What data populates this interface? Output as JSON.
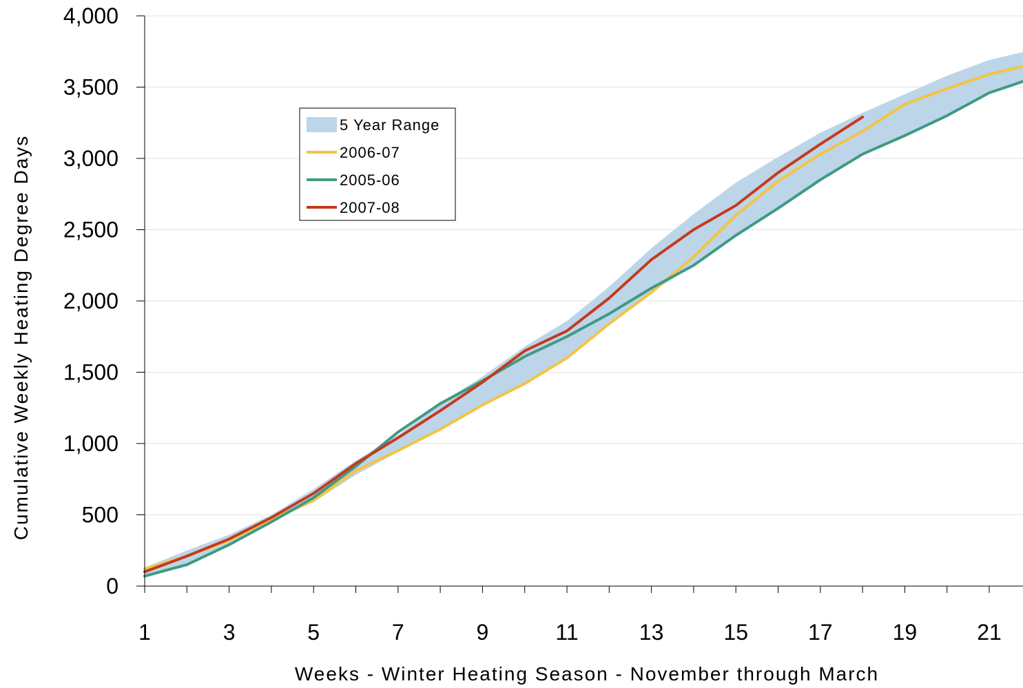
{
  "chart_data": {
    "type": "line",
    "xlabel": "Weeks - Winter Heating Season - November through March",
    "ylabel": "Cumulative Weekly Heating Degree Days",
    "xlim": [
      1,
      22
    ],
    "ylim": [
      0,
      4000
    ],
    "x_ticks": [
      1,
      3,
      5,
      7,
      9,
      11,
      13,
      15,
      17,
      19,
      21
    ],
    "y_ticks": [
      0,
      500,
      1000,
      1500,
      2000,
      2500,
      3000,
      3500,
      4000
    ],
    "y_tick_labels": [
      "0",
      "500",
      "1,000",
      "1,500",
      "2,000",
      "2,500",
      "3,000",
      "3,500",
      "4,000"
    ],
    "grid": "horizontal",
    "legend_position": "upper-left",
    "range_band": {
      "name": "5 Year Range",
      "color": "#bcd5e9",
      "x": [
        1,
        2,
        3,
        4,
        5,
        6,
        7,
        8,
        9,
        10,
        11,
        12,
        13,
        14,
        15,
        16,
        17,
        18,
        19,
        20,
        21,
        22
      ],
      "upper": [
        130,
        250,
        360,
        500,
        680,
        880,
        1060,
        1280,
        1470,
        1680,
        1860,
        2100,
        2370,
        2610,
        2830,
        3010,
        3180,
        3320,
        3450,
        3580,
        3690,
        3760
      ],
      "lower": [
        70,
        150,
        290,
        450,
        590,
        780,
        940,
        1100,
        1270,
        1420,
        1600,
        1840,
        2060,
        2250,
        2460,
        2650,
        2840,
        3020,
        3160,
        3300,
        3460,
        3560
      ]
    },
    "series": [
      {
        "name": "2006-07",
        "color": "#f5c344",
        "x": [
          1,
          2,
          3,
          4,
          5,
          6,
          7,
          8,
          9,
          10,
          11,
          12,
          13,
          14,
          15,
          16,
          17,
          18,
          19,
          20,
          21,
          22
        ],
        "values": [
          120,
          210,
          320,
          470,
          600,
          810,
          950,
          1100,
          1270,
          1420,
          1600,
          1840,
          2060,
          2310,
          2600,
          2840,
          3030,
          3190,
          3380,
          3490,
          3590,
          3660
        ]
      },
      {
        "name": "2005-06",
        "color": "#3f9a82",
        "x": [
          1,
          2,
          3,
          4,
          5,
          6,
          7,
          8,
          9,
          10,
          11,
          12,
          13,
          14,
          15,
          16,
          17,
          18,
          19,
          20,
          21,
          22
        ],
        "values": [
          70,
          150,
          290,
          450,
          620,
          840,
          1080,
          1280,
          1440,
          1610,
          1750,
          1910,
          2090,
          2250,
          2460,
          2650,
          2850,
          3030,
          3160,
          3300,
          3460,
          3560
        ]
      },
      {
        "name": "2007-08",
        "color": "#c53a1c",
        "x": [
          1,
          2,
          3,
          4,
          5,
          6,
          7,
          8,
          9,
          10,
          11,
          12,
          13,
          14,
          15,
          16,
          17,
          18
        ],
        "values": [
          100,
          210,
          330,
          480,
          650,
          860,
          1040,
          1230,
          1430,
          1650,
          1790,
          2020,
          2290,
          2500,
          2670,
          2900,
          3100,
          3290
        ]
      }
    ]
  }
}
